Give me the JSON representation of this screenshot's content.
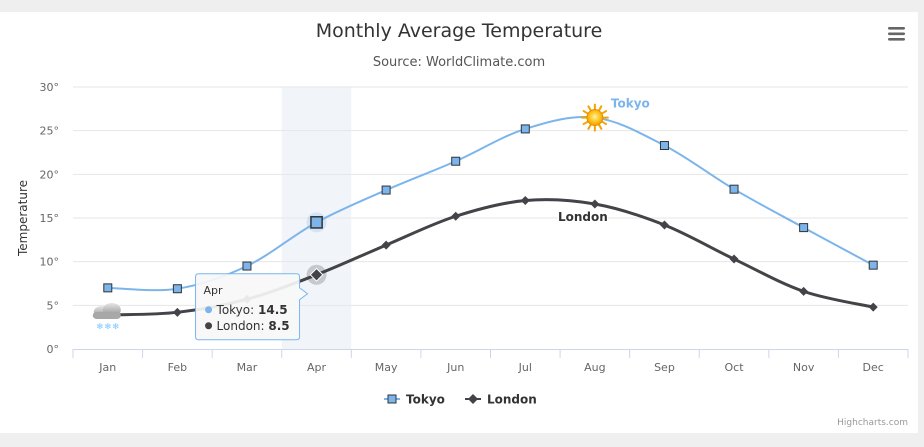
{
  "chart_data": {
    "type": "line",
    "title": "Monthly Average Temperature",
    "subtitle": "Source: WorldClimate.com",
    "xlabel": "",
    "ylabel": "Temperature",
    "categories": [
      "Jan",
      "Feb",
      "Mar",
      "Apr",
      "May",
      "Jun",
      "Jul",
      "Aug",
      "Sep",
      "Oct",
      "Nov",
      "Dec"
    ],
    "ylim": [
      0,
      30
    ],
    "y_ticks": [
      "0°",
      "5°",
      "10°",
      "15°",
      "20°",
      "25°",
      "30°"
    ],
    "grid": true,
    "legend_position": "bottom-center",
    "series": [
      {
        "name": "Tokyo",
        "marker": "square",
        "color": "#7cb5ec",
        "values": [
          7.0,
          6.9,
          9.5,
          14.5,
          18.2,
          21.5,
          25.2,
          26.5,
          23.3,
          18.3,
          13.9,
          9.6
        ]
      },
      {
        "name": "London",
        "marker": "diamond",
        "color": "#434348",
        "values": [
          3.9,
          4.2,
          5.7,
          8.5,
          11.9,
          15.2,
          17.0,
          16.6,
          14.2,
          10.3,
          6.6,
          4.8
        ]
      }
    ],
    "series_labels": [
      {
        "series": "Tokyo",
        "text": "Tokyo",
        "color": "#7cb5ec"
      },
      {
        "series": "London",
        "text": "London",
        "color": "#333333"
      }
    ],
    "highlighted_category": "Apr",
    "tooltip": {
      "header": "Apr",
      "rows": [
        {
          "name": "Tokyo",
          "value": "14.5",
          "color": "#7cb5ec"
        },
        {
          "name": "London",
          "value": "8.5",
          "color": "#434348"
        }
      ]
    },
    "annotations": [
      {
        "icon": "sun-icon",
        "series": "Tokyo",
        "category": "Aug"
      },
      {
        "icon": "snow-cloud-icon",
        "series": "London",
        "category": "Jan"
      }
    ]
  },
  "credits": "Highcharts.com",
  "menu_icon": "hamburger-menu-icon"
}
